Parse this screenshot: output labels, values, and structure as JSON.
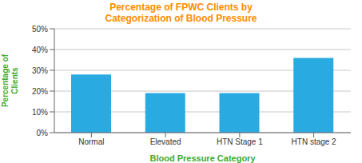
{
  "chart_data": {
    "type": "bar",
    "title": "Percentage of FPWC Clients by\nCategorization of Blood Pressure",
    "categories": [
      "Normal",
      "Elevated",
      "HTN Stage 1",
      "HTN stage 2"
    ],
    "values": [
      28,
      19,
      19,
      36
    ],
    "color": "#29ABE2",
    "xlabel": "Blood Pressure Category",
    "ylabel": "Percentage of\nClients",
    "ylim": [
      0,
      50
    ],
    "yticks": [
      {
        "value": 0,
        "label": "0%"
      },
      {
        "value": 10,
        "label": "10%"
      },
      {
        "value": 20,
        "label": "20%"
      },
      {
        "value": 30,
        "label": "30%"
      },
      {
        "value": 40,
        "label": "40%"
      },
      {
        "value": 50,
        "label": "50%"
      }
    ],
    "grid": true
  }
}
